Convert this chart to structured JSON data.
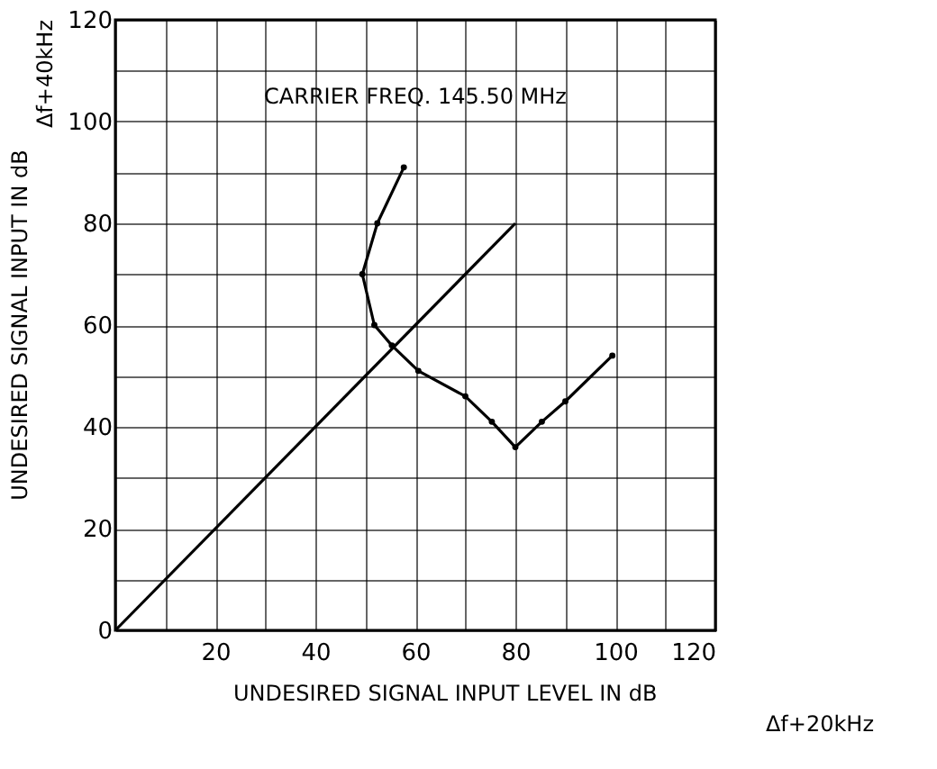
{
  "chart_data": {
    "type": "line",
    "xlabel": "UNDESIRED SIGNAL INPUT LEVEL IN dB\nΔf+20kHz",
    "ylabel": "UNDESIRED SIGNAL INPUT IN dB\nΔf+40kHz",
    "annotations": [
      "CARRIER FREQ.   145.50 MHz"
    ],
    "series": [
      {
        "color": "#000000",
        "marker": "circle",
        "x": [
          57.7,
          52.4,
          49.4,
          51.8,
          55.3,
          60.6,
          70,
          75.3,
          80,
          85.3,
          90,
          99.4
        ],
        "values": [
          91,
          80,
          70,
          60,
          56,
          51,
          46,
          41,
          36,
          41,
          45,
          54
        ]
      },
      {
        "color": "#000000",
        "marker": "none",
        "x": [
          0,
          80
        ],
        "values": [
          0,
          80
        ]
      }
    ],
    "xlim": [
      0,
      120
    ],
    "ylim": [
      0,
      120
    ],
    "xticks": [
      {
        "value": 0,
        "label": null
      },
      {
        "value": 10,
        "label": null
      },
      20,
      {
        "value": 30,
        "label": null
      },
      40,
      {
        "value": 50,
        "label": null
      },
      60,
      {
        "value": 70,
        "label": null
      },
      80,
      {
        "value": 90,
        "label": null
      },
      100,
      {
        "value": 110,
        "label": null
      },
      120
    ],
    "yticks": [
      0,
      {
        "value": 10,
        "label": null
      },
      20,
      {
        "value": 30,
        "label": null
      },
      40,
      {
        "value": 50,
        "label": null
      },
      60,
      {
        "value": 70,
        "label": null
      },
      80,
      {
        "value": 90,
        "label": null
      },
      100,
      {
        "value": 110,
        "label": null
      },
      120
    ],
    "grid": true,
    "line_style": "solid"
  }
}
